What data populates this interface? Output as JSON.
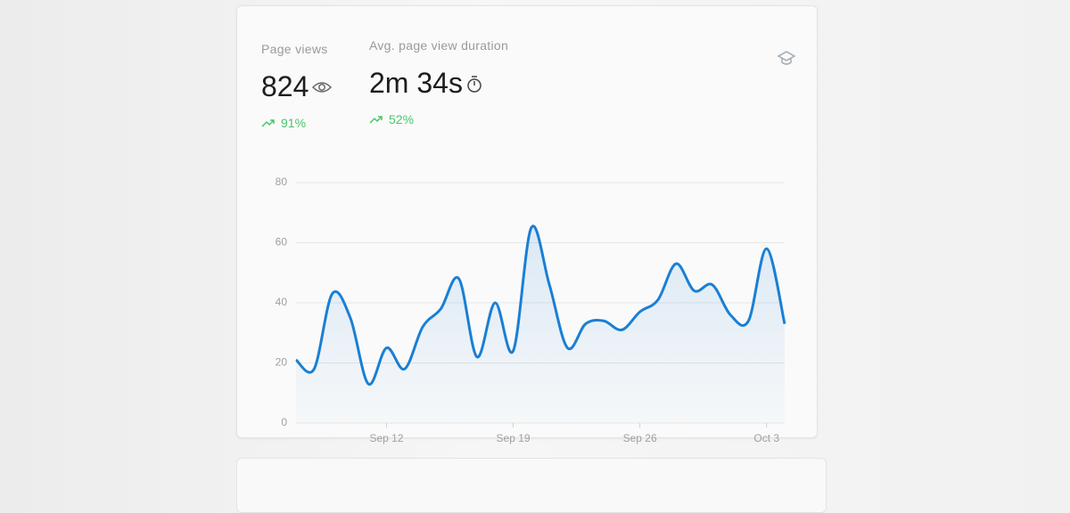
{
  "stats": [
    {
      "label": "Page views",
      "value": "824",
      "change": "91%"
    },
    {
      "label": "Avg. page view duration",
      "value": "2m 34s",
      "change": "52%"
    }
  ],
  "chart_data": {
    "type": "line",
    "categories": [
      null,
      null,
      null,
      null,
      null,
      "Sep 12",
      null,
      null,
      null,
      null,
      null,
      null,
      "Sep 19",
      null,
      null,
      null,
      null,
      null,
      null,
      "Sep 26",
      null,
      null,
      null,
      null,
      null,
      null,
      "Oct 3",
      null
    ],
    "series": [
      {
        "color": "#1a7fd4",
        "values": [
          21,
          18,
          43,
          35,
          13,
          25,
          18,
          32,
          38,
          48,
          22,
          40,
          24,
          65,
          46,
          25,
          33,
          34,
          31,
          37,
          41,
          53,
          44,
          46,
          36,
          34,
          58,
          33
        ]
      }
    ],
    "ylim": [
      0,
      80
    ],
    "yticks": [
      0,
      20,
      40,
      60,
      80
    ],
    "grid": true
  }
}
